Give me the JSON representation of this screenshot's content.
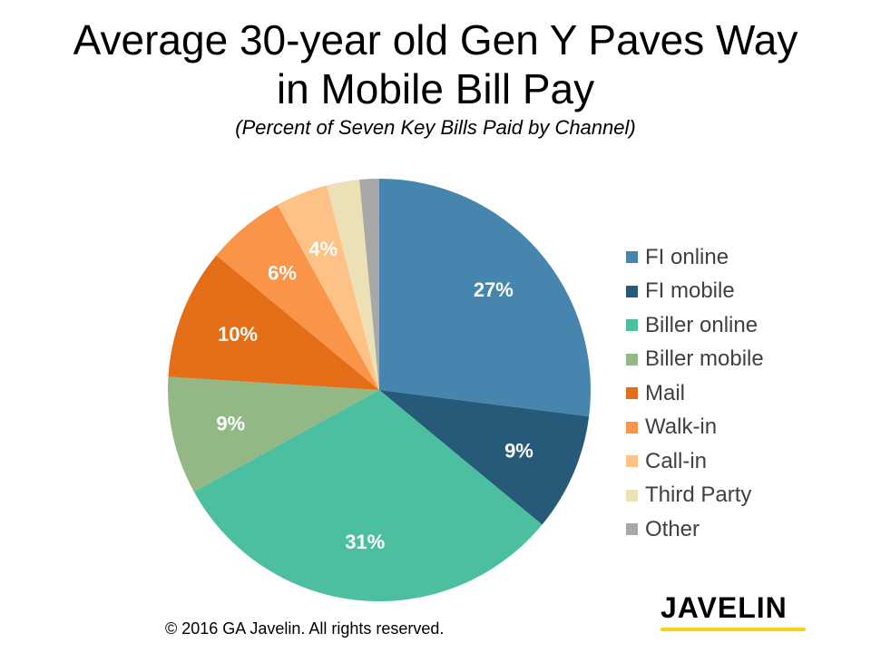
{
  "header": {
    "title_line1": "Average 30-year old Gen Y Paves Way",
    "title_line2": "in Mobile Bill Pay",
    "subtitle": "(Percent of Seven Key Bills Paid by Channel)"
  },
  "chart_data": {
    "type": "pie",
    "title": "Average 30-year old Gen Y Paves Way in Mobile Bill Pay",
    "subtitle": "(Percent of Seven Key Bills Paid by Channel)",
    "start_angle": "12 o'clock",
    "direction": "clockwise",
    "legend_position": "right",
    "slices": [
      {
        "name": "FI online",
        "value": 27,
        "label": "27%",
        "color": "#4685ad"
      },
      {
        "name": "FI mobile",
        "value": 9,
        "label": "9%",
        "color": "#265a78"
      },
      {
        "name": "Biller online",
        "value": 31,
        "label": "31%",
        "color": "#4bbf9f"
      },
      {
        "name": "Biller mobile",
        "value": 9,
        "label": "9%",
        "color": "#93b886"
      },
      {
        "name": "Mail",
        "value": 10,
        "label": "10%",
        "color": "#e46e17"
      },
      {
        "name": "Walk-in",
        "value": 6,
        "label": "6%",
        "color": "#fa9448"
      },
      {
        "name": "Call-in",
        "value": 4,
        "label": "4%",
        "color": "#fec287"
      },
      {
        "name": "Third Party",
        "value": 2.5,
        "label": "",
        "color": "#ece0b6"
      },
      {
        "name": "Other",
        "value": 1.5,
        "label": "",
        "color": "#a8a8a8"
      }
    ]
  },
  "footer": {
    "copyright": "© 2016 GA  Javelin.  All rights reserved.",
    "logo_text": "JAVELIN",
    "logo_accent": "#f7d117"
  }
}
